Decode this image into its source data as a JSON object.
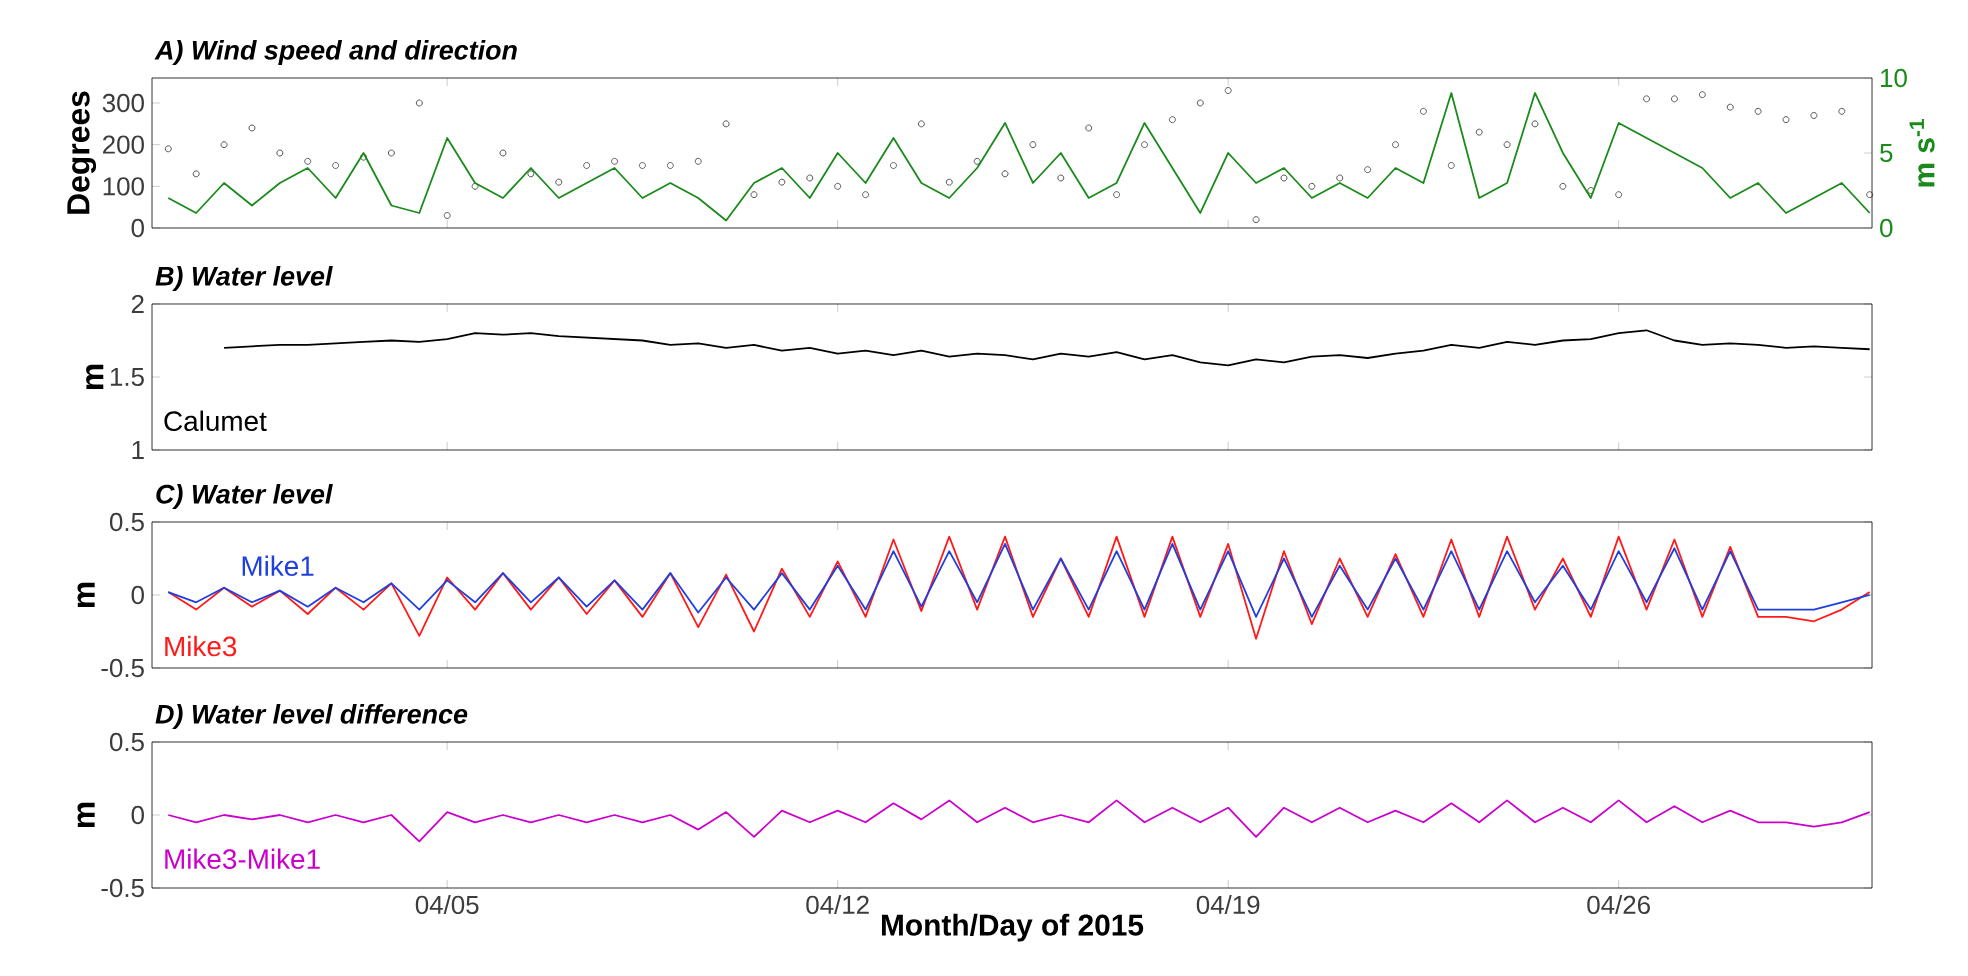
{
  "chart_data": [
    {
      "type": "line",
      "title": "A) Wind speed and direction",
      "ylabel": "Degrees",
      "y2label": "m s$^{-1}$",
      "tick_labels": "y",
      "xlim": [
        "2015-03-30T17:00",
        "2015-04-30T13:00"
      ],
      "xticks": [
        {
          "value": "2015-04-05",
          "label": null
        },
        {
          "value": "2015-04-12",
          "label": null
        },
        {
          "value": "2015-04-19",
          "label": null
        },
        {
          "value": "2015-04-26",
          "label": null
        }
      ],
      "ylim": [
        0,
        360
      ],
      "yticks": [
        0,
        100,
        200,
        300
      ],
      "y2lim": [
        0,
        10
      ],
      "y2ticks": [
        0,
        5,
        10
      ],
      "x": [
        "2015-03-31T00:00",
        "2015-03-31T12:00",
        "2015-04-01T00:00",
        "2015-04-01T12:00",
        "2015-04-02T00:00",
        "2015-04-02T12:00",
        "2015-04-03T00:00",
        "2015-04-03T12:00",
        "2015-04-04T00:00",
        "2015-04-04T12:00",
        "2015-04-05T00:00",
        "2015-04-05T12:00",
        "2015-04-06T00:00",
        "2015-04-06T12:00",
        "2015-04-07T00:00",
        "2015-04-07T12:00",
        "2015-04-08T00:00",
        "2015-04-08T12:00",
        "2015-04-09T00:00",
        "2015-04-09T12:00",
        "2015-04-10T00:00",
        "2015-04-10T12:00",
        "2015-04-11T00:00",
        "2015-04-11T12:00",
        "2015-04-12T00:00",
        "2015-04-12T12:00",
        "2015-04-13T00:00",
        "2015-04-13T12:00",
        "2015-04-14T00:00",
        "2015-04-14T12:00",
        "2015-04-15T00:00",
        "2015-04-15T12:00",
        "2015-04-16T00:00",
        "2015-04-16T12:00",
        "2015-04-17T00:00",
        "2015-04-17T12:00",
        "2015-04-18T00:00",
        "2015-04-18T12:00",
        "2015-04-19T00:00",
        "2015-04-19T12:00",
        "2015-04-20T00:00",
        "2015-04-20T12:00",
        "2015-04-21T00:00",
        "2015-04-21T12:00",
        "2015-04-22T00:00",
        "2015-04-22T12:00",
        "2015-04-23T00:00",
        "2015-04-23T12:00",
        "2015-04-24T00:00",
        "2015-04-24T12:00",
        "2015-04-25T00:00",
        "2015-04-25T12:00",
        "2015-04-26T00:00",
        "2015-04-26T12:00",
        "2015-04-27T00:00",
        "2015-04-27T12:00",
        "2015-04-28T00:00",
        "2015-04-28T12:00",
        "2015-04-29T00:00",
        "2015-04-29T12:00",
        "2015-04-30T00:00",
        "2015-04-30T12:00"
      ],
      "series": [
        {
          "type": "scatter",
          "marker": "circle",
          "color": "#555555",
          "values": [
            190,
            130,
            200,
            240,
            180,
            160,
            150,
            170,
            180,
            300,
            30,
            100,
            180,
            130,
            110,
            150,
            160,
            150,
            150,
            160,
            250,
            80,
            110,
            120,
            100,
            80,
            150,
            250,
            110,
            160,
            130,
            200,
            120,
            240,
            80,
            200,
            260,
            300,
            330,
            20,
            120,
            100,
            120,
            140,
            200,
            280,
            150,
            230,
            200,
            250,
            100,
            90,
            80,
            310,
            310,
            320,
            290,
            280,
            260,
            270,
            280,
            80
          ]
        },
        {
          "type": "line",
          "axis": "y2",
          "color": "#1a8a1a",
          "values": [
            2,
            1,
            3,
            1.5,
            3,
            4,
            2,
            5,
            1.5,
            1,
            6,
            3,
            2,
            4,
            2,
            3,
            4,
            2,
            3,
            2,
            0.5,
            3,
            4,
            2,
            5,
            3,
            6,
            3,
            2,
            4,
            7,
            3,
            5,
            2,
            3,
            7,
            4,
            1,
            5,
            3,
            4,
            2,
            3,
            2,
            4,
            3,
            9,
            2,
            3,
            9,
            5,
            2,
            7,
            6,
            5,
            4,
            2,
            3,
            1,
            2,
            3,
            1
          ]
        }
      ]
    },
    {
      "type": "line",
      "title": "B) Water level",
      "ylabel": "m",
      "tick_labels": "y",
      "xlim": [
        "2015-03-30T17:00",
        "2015-04-30T13:00"
      ],
      "xticks": [
        {
          "value": "2015-04-05",
          "label": null
        },
        {
          "value": "2015-04-12",
          "label": null
        },
        {
          "value": "2015-04-19",
          "label": null
        },
        {
          "value": "2015-04-26",
          "label": null
        }
      ],
      "ylim": [
        1,
        2
      ],
      "yticks": [
        1,
        1.5,
        2
      ],
      "x": [
        "2015-04-01T00:00",
        "2015-04-01T12:00",
        "2015-04-02T00:00",
        "2015-04-02T12:00",
        "2015-04-03T00:00",
        "2015-04-03T12:00",
        "2015-04-04T00:00",
        "2015-04-04T12:00",
        "2015-04-05T00:00",
        "2015-04-05T12:00",
        "2015-04-06T00:00",
        "2015-04-06T12:00",
        "2015-04-07T00:00",
        "2015-04-07T12:00",
        "2015-04-08T00:00",
        "2015-04-08T12:00",
        "2015-04-09T00:00",
        "2015-04-09T12:00",
        "2015-04-10T00:00",
        "2015-04-10T12:00",
        "2015-04-11T00:00",
        "2015-04-11T12:00",
        "2015-04-12T00:00",
        "2015-04-12T12:00",
        "2015-04-13T00:00",
        "2015-04-13T12:00",
        "2015-04-14T00:00",
        "2015-04-14T12:00",
        "2015-04-15T00:00",
        "2015-04-15T12:00",
        "2015-04-16T00:00",
        "2015-04-16T12:00",
        "2015-04-17T00:00",
        "2015-04-17T12:00",
        "2015-04-18T00:00",
        "2015-04-18T12:00",
        "2015-04-19T00:00",
        "2015-04-19T12:00",
        "2015-04-20T00:00",
        "2015-04-20T12:00",
        "2015-04-21T00:00",
        "2015-04-21T12:00",
        "2015-04-22T00:00",
        "2015-04-22T12:00",
        "2015-04-23T00:00",
        "2015-04-23T12:00",
        "2015-04-24T00:00",
        "2015-04-24T12:00",
        "2015-04-25T00:00",
        "2015-04-25T12:00",
        "2015-04-26T00:00",
        "2015-04-26T12:00",
        "2015-04-27T00:00",
        "2015-04-27T12:00",
        "2015-04-28T00:00",
        "2015-04-28T12:00",
        "2015-04-29T00:00",
        "2015-04-29T12:00",
        "2015-04-30T00:00",
        "2015-04-30T12:00"
      ],
      "series": [
        {
          "name": "Calumet",
          "color": "#000000",
          "values": [
            1.7,
            1.71,
            1.72,
            1.72,
            1.73,
            1.74,
            1.75,
            1.74,
            1.76,
            1.8,
            1.79,
            1.8,
            1.78,
            1.77,
            1.76,
            1.75,
            1.72,
            1.73,
            1.7,
            1.72,
            1.68,
            1.7,
            1.66,
            1.68,
            1.65,
            1.68,
            1.64,
            1.66,
            1.65,
            1.62,
            1.66,
            1.64,
            1.67,
            1.62,
            1.65,
            1.6,
            1.58,
            1.62,
            1.6,
            1.64,
            1.65,
            1.63,
            1.66,
            1.68,
            1.72,
            1.7,
            1.74,
            1.72,
            1.75,
            1.76,
            1.8,
            1.82,
            1.75,
            1.72,
            1.73,
            1.72,
            1.7,
            1.71,
            1.7,
            1.69
          ]
        }
      ]
    },
    {
      "type": "line",
      "title": "C) Water level",
      "ylabel": "m",
      "tick_labels": "y",
      "xlim": [
        "2015-03-30T17:00",
        "2015-04-30T13:00"
      ],
      "xticks": [
        {
          "value": "2015-04-05",
          "label": null
        },
        {
          "value": "2015-04-12",
          "label": null
        },
        {
          "value": "2015-04-19",
          "label": null
        },
        {
          "value": "2015-04-26",
          "label": null
        }
      ],
      "ylim": [
        -0.5,
        0.5
      ],
      "yticks": [
        -0.5,
        0,
        0.5
      ],
      "x": [
        "2015-03-31T00:00",
        "2015-03-31T12:00",
        "2015-04-01T00:00",
        "2015-04-01T12:00",
        "2015-04-02T00:00",
        "2015-04-02T12:00",
        "2015-04-03T00:00",
        "2015-04-03T12:00",
        "2015-04-04T00:00",
        "2015-04-04T12:00",
        "2015-04-05T00:00",
        "2015-04-05T12:00",
        "2015-04-06T00:00",
        "2015-04-06T12:00",
        "2015-04-07T00:00",
        "2015-04-07T12:00",
        "2015-04-08T00:00",
        "2015-04-08T12:00",
        "2015-04-09T00:00",
        "2015-04-09T12:00",
        "2015-04-10T00:00",
        "2015-04-10T12:00",
        "2015-04-11T00:00",
        "2015-04-11T12:00",
        "2015-04-12T00:00",
        "2015-04-12T12:00",
        "2015-04-13T00:00",
        "2015-04-13T12:00",
        "2015-04-14T00:00",
        "2015-04-14T12:00",
        "2015-04-15T00:00",
        "2015-04-15T12:00",
        "2015-04-16T00:00",
        "2015-04-16T12:00",
        "2015-04-17T00:00",
        "2015-04-17T12:00",
        "2015-04-18T00:00",
        "2015-04-18T12:00",
        "2015-04-19T00:00",
        "2015-04-19T12:00",
        "2015-04-20T00:00",
        "2015-04-20T12:00",
        "2015-04-21T00:00",
        "2015-04-21T12:00",
        "2015-04-22T00:00",
        "2015-04-22T12:00",
        "2015-04-23T00:00",
        "2015-04-23T12:00",
        "2015-04-24T00:00",
        "2015-04-24T12:00",
        "2015-04-25T00:00",
        "2015-04-25T12:00",
        "2015-04-26T00:00",
        "2015-04-26T12:00",
        "2015-04-27T00:00",
        "2015-04-27T12:00",
        "2015-04-28T00:00",
        "2015-04-28T12:00",
        "2015-04-29T00:00",
        "2015-04-29T12:00",
        "2015-04-30T00:00",
        "2015-04-30T12:00"
      ],
      "series": [
        {
          "name": "Mike3",
          "color": "#ff1a1a",
          "values": [
            0.02,
            -0.1,
            0.05,
            -0.08,
            0.03,
            -0.13,
            0.05,
            -0.1,
            0.08,
            -0.28,
            0.12,
            -0.1,
            0.15,
            -0.1,
            0.12,
            -0.13,
            0.1,
            -0.15,
            0.15,
            -0.22,
            0.14,
            -0.25,
            0.18,
            -0.15,
            0.23,
            -0.15,
            0.38,
            -0.11,
            0.4,
            -0.1,
            0.4,
            -0.15,
            0.25,
            -0.15,
            0.4,
            -0.15,
            0.4,
            -0.15,
            0.35,
            -0.3,
            0.3,
            -0.2,
            0.25,
            -0.15,
            0.28,
            -0.15,
            0.38,
            -0.15,
            0.4,
            -0.1,
            0.25,
            -0.15,
            0.4,
            -0.1,
            0.38,
            -0.15,
            0.33,
            -0.15,
            -0.15,
            -0.18,
            -0.1,
            0.02
          ]
        },
        {
          "name": "Mike1",
          "color": "#1f3fe0",
          "values": [
            0.02,
            -0.05,
            0.05,
            -0.05,
            0.03,
            -0.08,
            0.05,
            -0.05,
            0.08,
            -0.1,
            0.1,
            -0.05,
            0.15,
            -0.05,
            0.12,
            -0.08,
            0.1,
            -0.1,
            0.15,
            -0.12,
            0.12,
            -0.1,
            0.15,
            -0.1,
            0.2,
            -0.1,
            0.3,
            -0.08,
            0.3,
            -0.05,
            0.35,
            -0.1,
            0.25,
            -0.1,
            0.3,
            -0.1,
            0.35,
            -0.1,
            0.3,
            -0.15,
            0.25,
            -0.15,
            0.2,
            -0.1,
            0.25,
            -0.1,
            0.3,
            -0.1,
            0.3,
            -0.05,
            0.2,
            -0.1,
            0.3,
            -0.05,
            0.32,
            -0.1,
            0.3,
            -0.1,
            -0.1,
            -0.1,
            -0.05,
            0.0
          ]
        }
      ]
    },
    {
      "type": "line",
      "title": "D) Water level difference",
      "ylabel": "m",
      "xlabel": "Month/Day of 2015",
      "xlim": [
        "2015-03-30T17:00",
        "2015-04-30T13:00"
      ],
      "xticks": [
        {
          "value": "2015-04-05",
          "label": "04/05"
        },
        {
          "value": "2015-04-12",
          "label": "04/12"
        },
        {
          "value": "2015-04-19",
          "label": "04/19"
        },
        {
          "value": "2015-04-26",
          "label": "04/26"
        }
      ],
      "ylim": [
        -0.5,
        0.5
      ],
      "yticks": [
        -0.5,
        0,
        0.5
      ],
      "x": [
        "2015-03-31T00:00",
        "2015-03-31T12:00",
        "2015-04-01T00:00",
        "2015-04-01T12:00",
        "2015-04-02T00:00",
        "2015-04-02T12:00",
        "2015-04-03T00:00",
        "2015-04-03T12:00",
        "2015-04-04T00:00",
        "2015-04-04T12:00",
        "2015-04-05T00:00",
        "2015-04-05T12:00",
        "2015-04-06T00:00",
        "2015-04-06T12:00",
        "2015-04-07T00:00",
        "2015-04-07T12:00",
        "2015-04-08T00:00",
        "2015-04-08T12:00",
        "2015-04-09T00:00",
        "2015-04-09T12:00",
        "2015-04-10T00:00",
        "2015-04-10T12:00",
        "2015-04-11T00:00",
        "2015-04-11T12:00",
        "2015-04-12T00:00",
        "2015-04-12T12:00",
        "2015-04-13T00:00",
        "2015-04-13T12:00",
        "2015-04-14T00:00",
        "2015-04-14T12:00",
        "2015-04-15T00:00",
        "2015-04-15T12:00",
        "2015-04-16T00:00",
        "2015-04-16T12:00",
        "2015-04-17T00:00",
        "2015-04-17T12:00",
        "2015-04-18T00:00",
        "2015-04-18T12:00",
        "2015-04-19T00:00",
        "2015-04-19T12:00",
        "2015-04-20T00:00",
        "2015-04-20T12:00",
        "2015-04-21T00:00",
        "2015-04-21T12:00",
        "2015-04-22T00:00",
        "2015-04-22T12:00",
        "2015-04-23T00:00",
        "2015-04-23T12:00",
        "2015-04-24T00:00",
        "2015-04-24T12:00",
        "2015-04-25T00:00",
        "2015-04-25T12:00",
        "2015-04-26T00:00",
        "2015-04-26T12:00",
        "2015-04-27T00:00",
        "2015-04-27T12:00",
        "2015-04-28T00:00",
        "2015-04-28T12:00",
        "2015-04-29T00:00",
        "2015-04-29T12:00",
        "2015-04-30T00:00",
        "2015-04-30T12:00"
      ],
      "series": [
        {
          "name": "Mike3-Mike1",
          "color": "#cc00cc",
          "values": [
            0.0,
            -0.05,
            0.0,
            -0.03,
            0.0,
            -0.05,
            0.0,
            -0.05,
            0.0,
            -0.18,
            0.02,
            -0.05,
            0.0,
            -0.05,
            0.0,
            -0.05,
            0.0,
            -0.05,
            0.0,
            -0.1,
            0.02,
            -0.15,
            0.03,
            -0.05,
            0.03,
            -0.05,
            0.08,
            -0.03,
            0.1,
            -0.05,
            0.05,
            -0.05,
            0.0,
            -0.05,
            0.1,
            -0.05,
            0.05,
            -0.05,
            0.05,
            -0.15,
            0.05,
            -0.05,
            0.05,
            -0.05,
            0.03,
            -0.05,
            0.08,
            -0.05,
            0.1,
            -0.05,
            0.05,
            -0.05,
            0.1,
            -0.05,
            0.06,
            -0.05,
            0.03,
            -0.05,
            -0.05,
            -0.08,
            -0.05,
            0.02
          ]
        }
      ]
    }
  ]
}
